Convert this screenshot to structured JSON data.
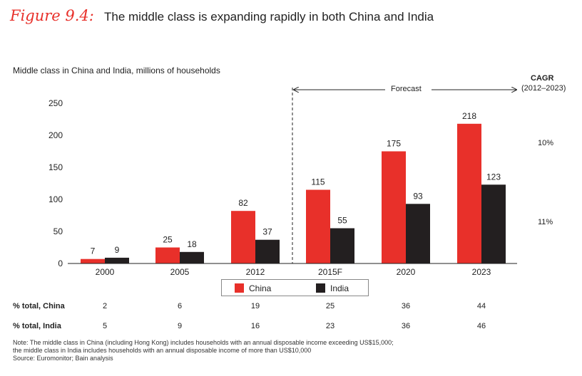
{
  "figure": {
    "label": "Figure 9.4:",
    "title": "The middle class is expanding rapidly in both China and India"
  },
  "cagr": {
    "title": "CAGR",
    "range": "(2012–2023)",
    "china": "10%",
    "india": "11%"
  },
  "forecast_label": "Forecast",
  "legend": {
    "china": "China",
    "india": "India"
  },
  "colors": {
    "china": "#e8302a",
    "india": "#231f20"
  },
  "table": {
    "china_label": "% total, China",
    "india_label": "% total, India",
    "china": [
      "2",
      "6",
      "19",
      "25",
      "36",
      "44"
    ],
    "india": [
      "5",
      "9",
      "16",
      "23",
      "36",
      "46"
    ]
  },
  "notes": {
    "note1": "Note:  The middle class in China (including Hong Kong) includes households with an annual disposable income exceeding US$15,000;",
    "note2": "the middle class in India includes households with an annual disposable income of more than US$10,000",
    "source": "Source:  Euromonitor; Bain analysis"
  },
  "chart_data": {
    "type": "bar",
    "title": "",
    "ylabel": "Middle class in China and India, millions of households",
    "xlabel": "",
    "categories": [
      "2000",
      "2005",
      "2012",
      "2015F",
      "2020",
      "2023"
    ],
    "series": [
      {
        "name": "China",
        "values": [
          7,
          25,
          82,
          115,
          175,
          218
        ]
      },
      {
        "name": "India",
        "values": [
          9,
          18,
          37,
          55,
          93,
          123
        ]
      }
    ],
    "ylim": [
      0,
      250
    ],
    "yticks": [
      0,
      50,
      100,
      150,
      200,
      250
    ],
    "grid": false,
    "legend_position": "bottom-center"
  }
}
